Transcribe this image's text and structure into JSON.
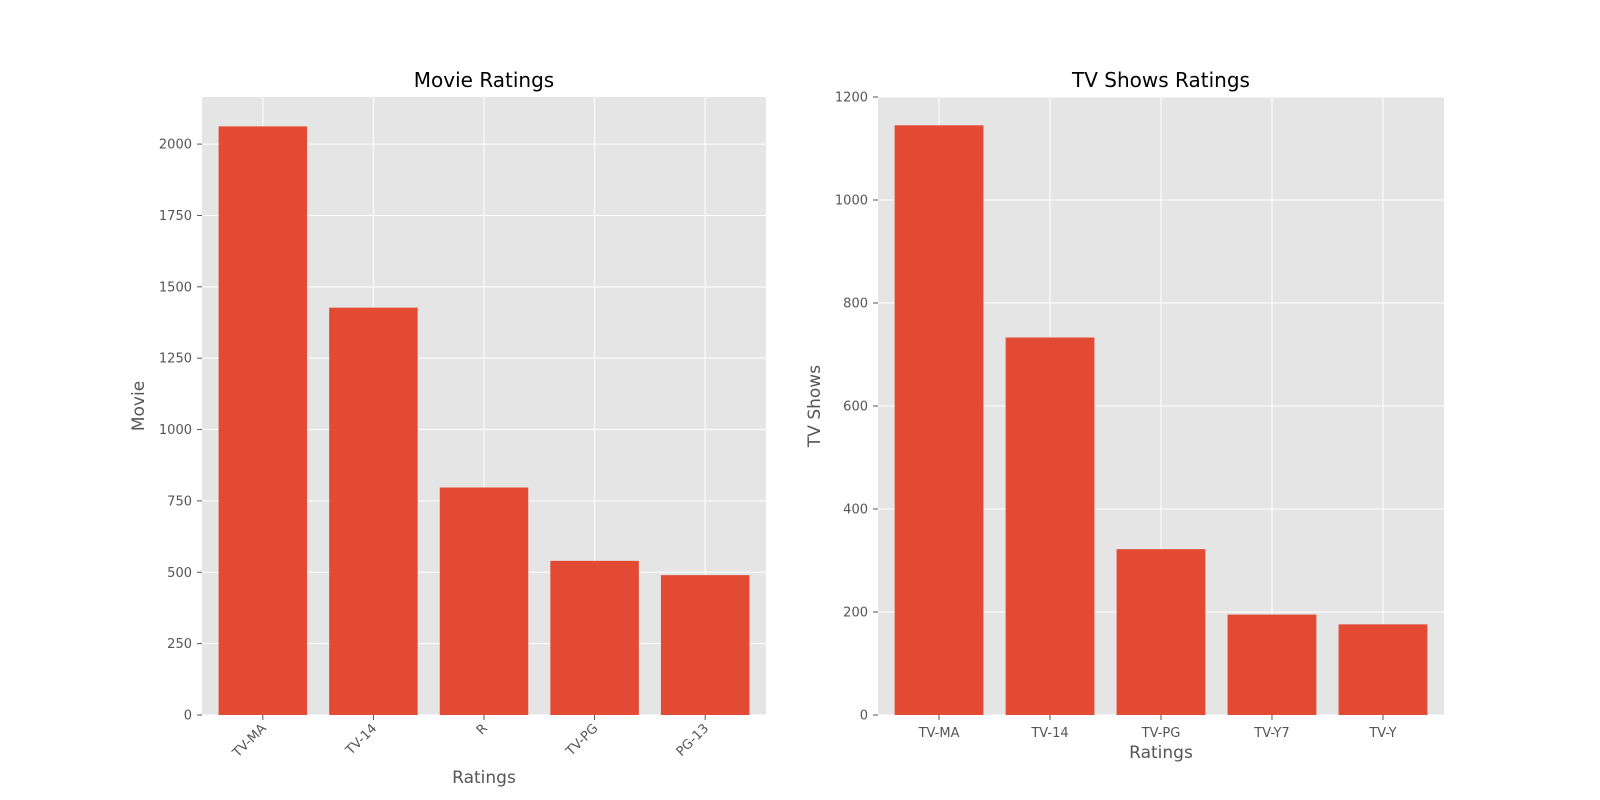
{
  "chart_data": [
    {
      "type": "bar",
      "title": "Movie Ratings",
      "xlabel": "Ratings",
      "ylabel": "Movie",
      "categories": [
        "TV-MA",
        "TV-14",
        "R",
        "TV-PG",
        "PG-13"
      ],
      "values": [
        2062,
        1427,
        797,
        540,
        490
      ],
      "ylim": [
        0,
        2165
      ],
      "yticks": [
        0,
        250,
        500,
        750,
        1000,
        1250,
        1500,
        1750,
        2000
      ],
      "xtick_rotation": -45,
      "grid": true,
      "bar_color": "#E24A33",
      "background": "#E5E5E5"
    },
    {
      "type": "bar",
      "title": "TV Shows Ratings",
      "xlabel": "Ratings",
      "ylabel": "TV Shows",
      "categories": [
        "TV-MA",
        "TV-14",
        "TV-PG",
        "TV-Y7",
        "TV-Y"
      ],
      "values": [
        1145,
        733,
        322,
        195,
        176
      ],
      "ylim": [
        0,
        1200
      ],
      "yticks": [
        0,
        200,
        400,
        600,
        800,
        1000,
        1200
      ],
      "xtick_rotation": 0,
      "grid": true,
      "bar_color": "#E24A33",
      "background": "#E5E5E5"
    }
  ]
}
